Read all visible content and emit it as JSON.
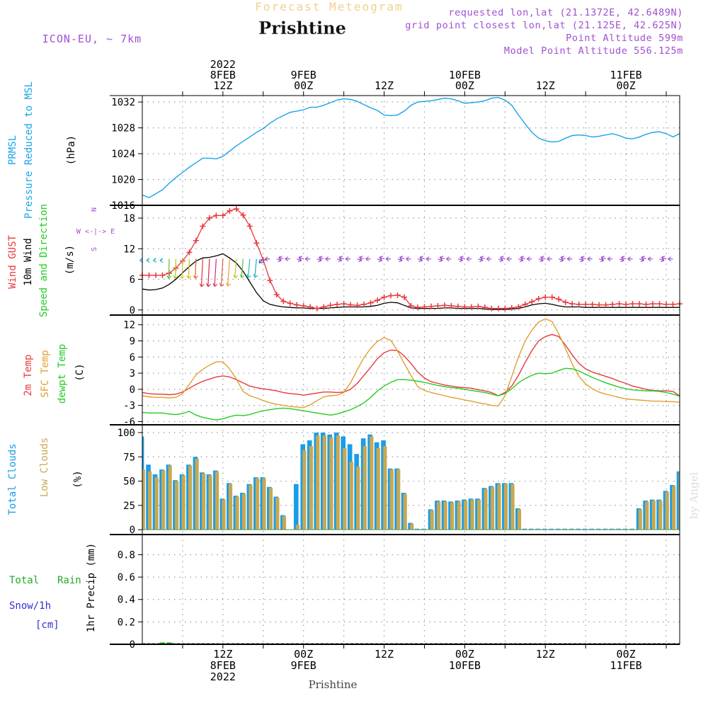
{
  "header": {
    "product": "Forecast Meteogram",
    "location": "Prishtine",
    "model": "ICON-EU, ~ 7km",
    "requested": "requested lon,lat (21.1372E, 42.6489N)",
    "gridpoint": "grid point closest lon,lat (21.125E, 42.625N)",
    "point_alt": "Point Altitude 599m",
    "model_alt": "Model Point Altitude 556.125m",
    "credit": "by Angel",
    "footer_location": "Prishtine"
  },
  "time_axis": {
    "top_labels": [
      {
        "t": 12,
        "lines": [
          "2022",
          "8FEB",
          "12Z"
        ]
      },
      {
        "t": 24,
        "lines": [
          "9FEB",
          "00Z"
        ]
      },
      {
        "t": 36,
        "lines": [
          "12Z"
        ]
      },
      {
        "t": 48,
        "lines": [
          "10FEB",
          "00Z"
        ]
      },
      {
        "t": 60,
        "lines": [
          "12Z"
        ]
      },
      {
        "t": 72,
        "lines": [
          "11FEB",
          "00Z"
        ]
      }
    ],
    "bottom_labels": [
      {
        "t": 12,
        "lines": [
          "12Z",
          "8FEB",
          "2022"
        ]
      },
      {
        "t": 24,
        "lines": [
          "00Z",
          "9FEB"
        ]
      },
      {
        "t": 36,
        "lines": [
          "12Z"
        ]
      },
      {
        "t": 48,
        "lines": [
          "00Z",
          "10FEB"
        ]
      },
      {
        "t": 60,
        "lines": [
          "12Z"
        ]
      },
      {
        "t": 72,
        "lines": [
          "00Z",
          "11FEB"
        ]
      }
    ]
  },
  "panels": {
    "pressure": {
      "labels": [
        "PRMSL",
        "Pressure Reduced to MSL",
        "(hPa)"
      ],
      "ticks": [
        "1032",
        "1028",
        "1024",
        "1020",
        "1016"
      ]
    },
    "wind": {
      "labels": [
        "Wind GUST",
        "10m Wind",
        "Speed and Direction",
        "(m/s)"
      ],
      "ticks": [
        "18",
        "12",
        "6",
        "0"
      ],
      "compass": [
        "N",
        "W <-|-> E",
        "S"
      ]
    },
    "temp": {
      "labels": [
        "2m Temp",
        "SFC Temp",
        "dewpt Temp",
        "(C)"
      ],
      "ticks": [
        "12",
        "9",
        "6",
        "3",
        "0",
        "-3",
        "-6"
      ]
    },
    "clouds": {
      "labels": [
        "Total Clouds",
        "Low Clouds",
        "(%)"
      ],
      "ticks": [
        "100",
        "75",
        "50",
        "25",
        "0"
      ]
    },
    "precip": {
      "labels": [
        "Total",
        "Rain",
        "Snow/1h",
        "[cm]",
        "1hr Precip (mm)"
      ],
      "ticks": [
        "0.8",
        "0.6",
        "0.4",
        "0.2",
        "0"
      ]
    }
  },
  "colors": {
    "pressure": "#1aa3e8",
    "gust": "#e8383d",
    "wind": "#000000",
    "sfc": "#e0a030",
    "dewpt": "#22cc22",
    "total_cloud": "#1a9de8",
    "low_cloud": "#c8a850",
    "grid": "#9a9a9a",
    "rain": "#22aa22",
    "purple": "#a050d0",
    "snow": "#3030d0"
  },
  "chart_data": {
    "type": "line",
    "x_unit": "hours after 2022-02-08 00Z",
    "xlim": [
      0,
      80
    ],
    "pressure": {
      "name": "PRMSL",
      "ylim": [
        1016,
        1033
      ],
      "x": [
        0,
        1,
        2,
        3,
        4,
        5,
        6,
        7,
        8,
        9,
        10,
        11,
        12,
        13,
        14,
        15,
        16,
        17,
        18,
        19,
        20,
        21,
        22,
        23,
        24,
        25,
        26,
        27,
        28,
        29,
        30,
        31,
        32,
        33,
        34,
        35,
        36,
        37,
        38,
        39,
        40,
        41,
        42,
        43,
        44,
        45,
        46,
        47,
        48,
        49,
        50,
        51,
        52,
        53,
        54,
        55,
        56,
        57,
        58,
        59,
        60,
        61,
        62,
        63,
        64,
        65,
        66,
        67,
        68,
        69,
        70,
        71,
        72,
        73,
        74,
        75,
        76,
        77,
        78,
        79,
        80
      ],
      "y": [
        1017.6,
        1017.2,
        1017.8,
        1018.4,
        1019.4,
        1020.3,
        1021.1,
        1021.9,
        1022.6,
        1023.3,
        1023.3,
        1023.2,
        1023.6,
        1024.4,
        1025.2,
        1025.9,
        1026.6,
        1027.3,
        1027.9,
        1028.7,
        1029.4,
        1029.9,
        1030.4,
        1030.6,
        1030.8,
        1031.2,
        1031.2,
        1031.5,
        1031.9,
        1032.3,
        1032.5,
        1032.4,
        1032.1,
        1031.6,
        1031.1,
        1030.7,
        1030.0,
        1029.9,
        1030.0,
        1030.6,
        1031.5,
        1032.0,
        1032.1,
        1032.2,
        1032.4,
        1032.6,
        1032.5,
        1032.2,
        1031.8,
        1031.9,
        1032.0,
        1032.2,
        1032.6,
        1032.7,
        1032.3,
        1031.5,
        1030.0,
        1028.6,
        1027.3,
        1026.4,
        1026.0,
        1025.8,
        1025.9,
        1026.4,
        1026.8,
        1026.9,
        1026.8,
        1026.6,
        1026.7,
        1026.9,
        1027.1,
        1026.8,
        1026.4,
        1026.3,
        1026.6,
        1027.0,
        1027.3,
        1027.4,
        1027.1,
        1026.6,
        1027.1
      ]
    },
    "gust": {
      "name": "Wind GUST",
      "ylim": [
        -1,
        20.5
      ],
      "x": [
        0,
        1,
        2,
        3,
        4,
        5,
        6,
        7,
        8,
        9,
        10,
        11,
        12,
        13,
        14,
        15,
        16,
        17,
        18,
        19,
        20,
        21,
        22,
        23,
        24,
        25,
        26,
        27,
        28,
        29,
        30,
        31,
        32,
        33,
        34,
        35,
        36,
        37,
        38,
        39,
        40,
        41,
        42,
        43,
        44,
        45,
        46,
        47,
        48,
        49,
        50,
        51,
        52,
        53,
        54,
        55,
        56,
        57,
        58,
        59,
        60,
        61,
        62,
        63,
        64,
        65,
        66,
        67,
        68,
        69,
        70,
        71,
        72,
        73,
        74,
        75,
        76,
        77,
        78,
        79,
        80
      ],
      "y": [
        6.8,
        6.8,
        6.8,
        6.8,
        7.2,
        8.2,
        9.6,
        11.3,
        13.6,
        16.4,
        18.0,
        18.5,
        18.5,
        19.4,
        19.8,
        18.6,
        16.4,
        13.1,
        9.8,
        5.8,
        3.0,
        1.7,
        1.3,
        1.0,
        0.8,
        0.6,
        0.3,
        0.6,
        0.9,
        1.1,
        1.2,
        1.0,
        0.9,
        1.1,
        1.4,
        1.9,
        2.5,
        2.8,
        2.9,
        2.5,
        0.8,
        0.5,
        0.6,
        0.7,
        0.8,
        0.9,
        0.8,
        0.7,
        0.6,
        0.6,
        0.7,
        0.5,
        0.3,
        0.3,
        0.3,
        0.4,
        0.6,
        1.1,
        1.6,
        2.2,
        2.5,
        2.5,
        2.1,
        1.5,
        1.2,
        1.1,
        1.1,
        1.1,
        1.0,
        1.0,
        1.1,
        1.2,
        1.1,
        1.2,
        1.2,
        1.1,
        1.2,
        1.2,
        1.1,
        1.1,
        1.2
      ]
    },
    "wind": {
      "name": "10m Wind",
      "ylim": [
        -1,
        20.5
      ],
      "x": [
        0,
        1,
        2,
        3,
        4,
        5,
        6,
        7,
        8,
        9,
        10,
        11,
        12,
        13,
        14,
        15,
        16,
        17,
        18,
        19,
        20,
        21,
        22,
        23,
        24,
        25,
        26,
        27,
        28,
        29,
        30,
        31,
        32,
        33,
        34,
        35,
        36,
        37,
        38,
        39,
        40,
        41,
        42,
        43,
        44,
        45,
        46,
        47,
        48,
        49,
        50,
        51,
        52,
        53,
        54,
        55,
        56,
        57,
        58,
        59,
        60,
        61,
        62,
        63,
        64,
        65,
        66,
        67,
        68,
        69,
        70,
        71,
        72,
        73,
        74,
        75,
        76,
        77,
        78,
        79,
        80
      ],
      "y": [
        4.1,
        3.9,
        4.0,
        4.3,
        5.0,
        6.0,
        7.3,
        8.5,
        9.6,
        10.2,
        10.3,
        10.6,
        11.0,
        10.2,
        9.2,
        7.6,
        5.5,
        3.4,
        1.8,
        1.1,
        0.8,
        0.6,
        0.5,
        0.4,
        0.4,
        0.3,
        0.3,
        0.3,
        0.4,
        0.5,
        0.6,
        0.6,
        0.6,
        0.6,
        0.7,
        0.9,
        1.3,
        1.5,
        1.4,
        0.9,
        0.4,
        0.3,
        0.3,
        0.3,
        0.3,
        0.4,
        0.4,
        0.3,
        0.3,
        0.3,
        0.3,
        0.2,
        0.1,
        0.1,
        0.1,
        0.2,
        0.3,
        0.6,
        1.0,
        1.2,
        1.3,
        1.1,
        0.8,
        0.6,
        0.6,
        0.6,
        0.5,
        0.5,
        0.5,
        0.5,
        0.5,
        0.5,
        0.5,
        0.5,
        0.5,
        0.5,
        0.5,
        0.5,
        0.5,
        0.5,
        0.5
      ]
    },
    "t2m": {
      "name": "2m Temp",
      "ylim": [
        -6.6,
        13.8
      ],
      "x": [
        0,
        1,
        2,
        3,
        4,
        5,
        6,
        7,
        8,
        9,
        10,
        11,
        12,
        13,
        14,
        15,
        16,
        17,
        18,
        19,
        20,
        21,
        22,
        23,
        24,
        25,
        26,
        27,
        28,
        29,
        30,
        31,
        32,
        33,
        34,
        35,
        36,
        37,
        38,
        39,
        40,
        41,
        42,
        43,
        44,
        45,
        46,
        47,
        48,
        49,
        50,
        51,
        52,
        53,
        54,
        55,
        56,
        57,
        58,
        59,
        60,
        61,
        62,
        63,
        64,
        65,
        66,
        67,
        68,
        69,
        70,
        71,
        72,
        73,
        74,
        75,
        76,
        77,
        78,
        79,
        80
      ],
      "y": [
        -0.6,
        -0.8,
        -0.9,
        -0.9,
        -1.0,
        -0.9,
        -0.5,
        0.2,
        0.9,
        1.5,
        1.9,
        2.3,
        2.5,
        2.3,
        1.8,
        1.2,
        0.6,
        0.3,
        0.1,
        -0.1,
        -0.3,
        -0.6,
        -0.8,
        -0.9,
        -1.1,
        -0.9,
        -0.7,
        -0.5,
        -0.5,
        -0.6,
        -0.5,
        0.0,
        1.1,
        2.6,
        4.1,
        5.7,
        6.8,
        7.3,
        7.2,
        6.2,
        4.8,
        3.2,
        2.1,
        1.4,
        1.1,
        0.8,
        0.6,
        0.4,
        0.3,
        0.2,
        -0.1,
        -0.3,
        -0.6,
        -1.2,
        -0.6,
        0.6,
        2.6,
        5.0,
        7.2,
        9.0,
        9.8,
        10.2,
        9.8,
        8.2,
        6.4,
        4.8,
        3.8,
        3.2,
        2.8,
        2.4,
        2.0,
        1.5,
        1.1,
        0.6,
        0.3,
        0.0,
        -0.2,
        -0.3,
        -0.3,
        -0.4,
        -1.2
      ]
    },
    "sfc": {
      "name": "SFC Temp",
      "ylim": [
        -6.6,
        13.8
      ],
      "x": [
        0,
        1,
        2,
        3,
        4,
        5,
        6,
        7,
        8,
        9,
        10,
        11,
        12,
        13,
        14,
        15,
        16,
        17,
        18,
        19,
        20,
        21,
        22,
        23,
        24,
        25,
        26,
        27,
        28,
        29,
        30,
        31,
        32,
        33,
        34,
        35,
        36,
        37,
        38,
        39,
        40,
        41,
        42,
        43,
        44,
        45,
        46,
        47,
        48,
        49,
        50,
        51,
        52,
        53,
        54,
        55,
        56,
        57,
        58,
        59,
        60,
        61,
        62,
        63,
        64,
        65,
        66,
        67,
        68,
        69,
        70,
        71,
        72,
        73,
        74,
        75,
        76,
        77,
        78,
        79,
        80
      ],
      "y": [
        -1.2,
        -1.4,
        -1.5,
        -1.5,
        -1.6,
        -1.5,
        -0.8,
        0.9,
        2.7,
        3.7,
        4.5,
        5.1,
        5.1,
        3.8,
        1.9,
        -0.4,
        -1.2,
        -1.6,
        -2.1,
        -2.5,
        -2.8,
        -3.0,
        -3.2,
        -3.3,
        -3.4,
        -2.9,
        -2.1,
        -1.4,
        -1.2,
        -1.1,
        -0.6,
        1.2,
        3.6,
        5.9,
        7.6,
        8.9,
        9.6,
        9.1,
        7.1,
        4.8,
        2.6,
        0.5,
        -0.2,
        -0.6,
        -0.9,
        -1.2,
        -1.5,
        -1.7,
        -2.0,
        -2.2,
        -2.5,
        -2.7,
        -3.0,
        -3.1,
        -1.2,
        2.4,
        6.0,
        9.0,
        11.0,
        12.5,
        13.1,
        12.6,
        10.3,
        7.6,
        4.7,
        2.4,
        1.0,
        0.1,
        -0.5,
        -0.9,
        -1.2,
        -1.5,
        -1.8,
        -1.9,
        -2.0,
        -2.1,
        -2.2,
        -2.2,
        -2.3,
        -2.3,
        -2.4
      ]
    },
    "dewpt": {
      "name": "dewpt Temp",
      "ylim": [
        -6.6,
        13.8
      ],
      "x": [
        0,
        1,
        2,
        3,
        4,
        5,
        6,
        7,
        8,
        9,
        10,
        11,
        12,
        13,
        14,
        15,
        16,
        17,
        18,
        19,
        20,
        21,
        22,
        23,
        24,
        25,
        26,
        27,
        28,
        29,
        30,
        31,
        32,
        33,
        34,
        35,
        36,
        37,
        38,
        39,
        40,
        41,
        42,
        43,
        44,
        45,
        46,
        47,
        48,
        49,
        50,
        51,
        52,
        53,
        54,
        55,
        56,
        57,
        58,
        59,
        60,
        61,
        62,
        63,
        64,
        65,
        66,
        67,
        68,
        69,
        70,
        71,
        72,
        73,
        74,
        75,
        76,
        77,
        78,
        79,
        80
      ],
      "y": [
        -4.3,
        -4.4,
        -4.4,
        -4.4,
        -4.6,
        -4.7,
        -4.5,
        -4.1,
        -4.8,
        -5.2,
        -5.5,
        -5.7,
        -5.5,
        -5.1,
        -4.8,
        -4.9,
        -4.7,
        -4.3,
        -4.0,
        -3.8,
        -3.6,
        -3.5,
        -3.6,
        -3.8,
        -4.0,
        -4.2,
        -4.4,
        -4.6,
        -4.8,
        -4.6,
        -4.2,
        -3.8,
        -3.2,
        -2.5,
        -1.5,
        -0.3,
        0.6,
        1.3,
        1.8,
        1.8,
        1.7,
        1.5,
        1.3,
        1.0,
        0.7,
        0.5,
        0.3,
        0.2,
        0.0,
        -0.2,
        -0.4,
        -0.6,
        -0.9,
        -1.2,
        -0.8,
        0.1,
        1.2,
        2.0,
        2.6,
        3.0,
        2.9,
        3.0,
        3.5,
        3.9,
        3.8,
        3.4,
        2.8,
        2.2,
        1.7,
        1.2,
        0.8,
        0.4,
        0.1,
        -0.1,
        -0.2,
        -0.3,
        -0.3,
        -0.4,
        -0.6,
        -0.9,
        -1.3
      ]
    },
    "clouds": {
      "ylim": [
        -5,
        108
      ],
      "x": [
        0,
        1,
        2,
        3,
        4,
        5,
        6,
        7,
        8,
        9,
        10,
        11,
        12,
        13,
        14,
        15,
        16,
        17,
        18,
        19,
        20,
        21,
        22,
        23,
        24,
        25,
        26,
        27,
        28,
        29,
        30,
        31,
        32,
        33,
        34,
        35,
        36,
        37,
        38,
        39,
        40,
        41,
        42,
        43,
        44,
        45,
        46,
        47,
        48,
        49,
        50,
        51,
        52,
        53,
        54,
        55,
        56,
        57,
        58,
        59,
        60,
        61,
        62,
        63,
        64,
        65,
        66,
        67,
        68,
        69,
        70,
        71,
        72,
        73,
        74,
        75,
        76,
        77,
        78,
        79,
        80
      ],
      "total": [
        96,
        67,
        57,
        62,
        67,
        51,
        57,
        67,
        75,
        59,
        57,
        61,
        32,
        48,
        35,
        38,
        47,
        54,
        54,
        44,
        34,
        15,
        0,
        47,
        88,
        92,
        100,
        100,
        98,
        100,
        96,
        88,
        78,
        94,
        98,
        90,
        92,
        63,
        63,
        38,
        7,
        1,
        1,
        21,
        30,
        30,
        29,
        30,
        31,
        32,
        32,
        43,
        45,
        48,
        48,
        48,
        22,
        1,
        1,
        1,
        1,
        1,
        1,
        1,
        1,
        1,
        1,
        1,
        1,
        1,
        1,
        1,
        1,
        1,
        22,
        30,
        31,
        31,
        40,
        46,
        60
      ],
      "low": [
        62,
        60,
        54,
        61,
        66,
        50,
        56,
        66,
        73,
        58,
        56,
        60,
        31,
        47,
        34,
        37,
        46,
        53,
        53,
        43,
        33,
        14,
        0,
        5,
        82,
        86,
        97,
        97,
        95,
        97,
        84,
        70,
        65,
        86,
        96,
        84,
        86,
        62,
        62,
        37,
        6,
        0,
        0,
        20,
        29,
        29,
        28,
        29,
        30,
        31,
        31,
        42,
        44,
        47,
        47,
        47,
        21,
        0,
        0,
        0,
        0,
        0,
        0,
        0,
        0,
        0,
        0,
        0,
        0,
        0,
        0,
        0,
        0,
        0,
        21,
        29,
        30,
        30,
        39,
        45,
        59
      ]
    },
    "precip": {
      "ylim": [
        0,
        0.98
      ],
      "x": [
        3,
        4
      ],
      "rain": [
        0.01,
        0.01
      ]
    }
  }
}
